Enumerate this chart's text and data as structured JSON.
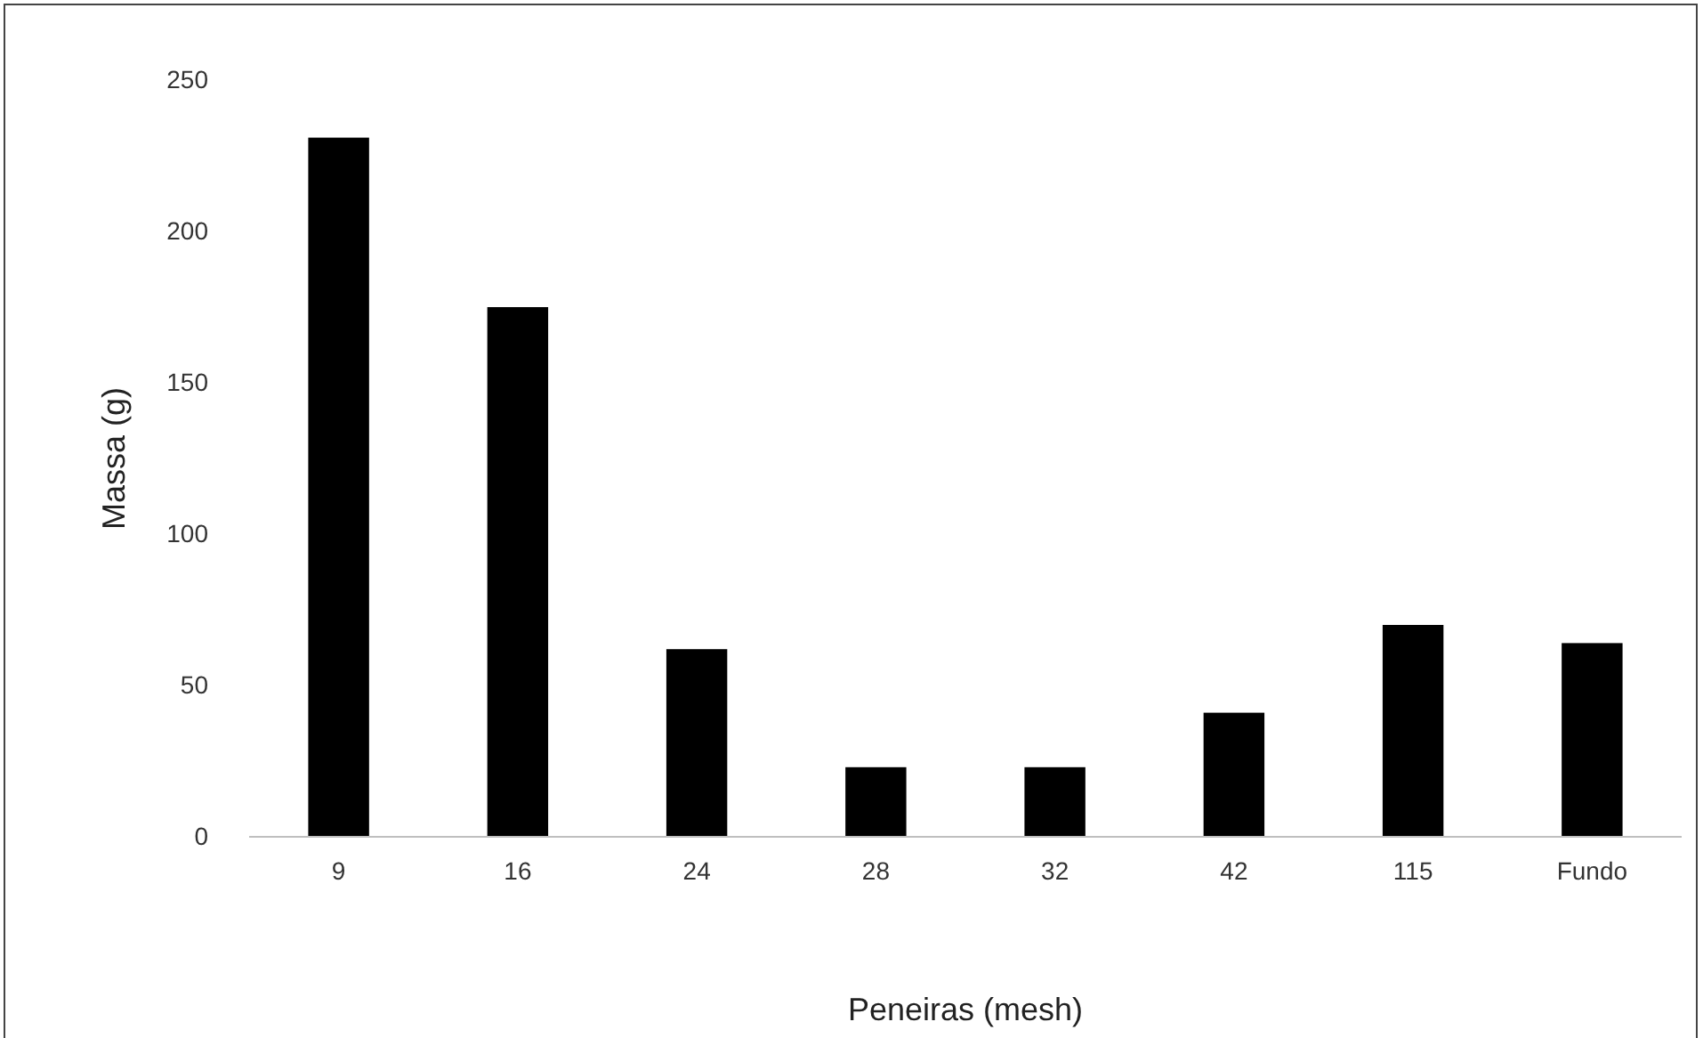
{
  "chart_data": {
    "type": "bar",
    "xlabel": "Peneiras (mesh)",
    "ylabel": "Massa (g)",
    "categories": [
      "9",
      "16",
      "24",
      "28",
      "32",
      "42",
      "115",
      "Fundo"
    ],
    "values": [
      231,
      175,
      62,
      23,
      23,
      41,
      70,
      64
    ],
    "color": "#000000",
    "ylim": [
      0,
      250
    ],
    "yticks": [
      0,
      50,
      100,
      150,
      200,
      250
    ],
    "grid": false
  }
}
